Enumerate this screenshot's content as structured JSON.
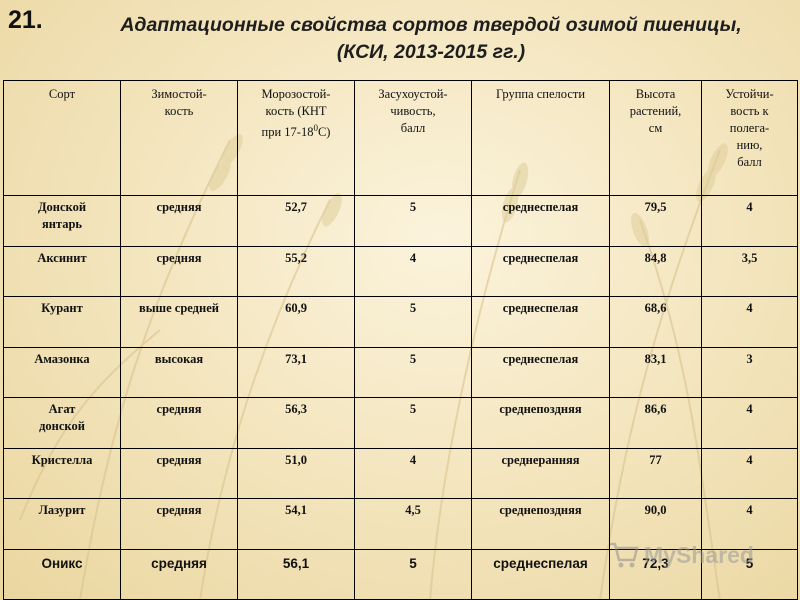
{
  "slide": {
    "number": "21.",
    "title_line1": "Адаптационные свойства сортов твердой озимой пшеницы,",
    "title_line2": "(КСИ, 2013-2015 гг.)"
  },
  "table": {
    "headers": [
      "Сорт",
      "Зимостой-\nкость",
      "Засухоустой-\nчивость,\nбалл",
      "Группа спелости",
      "Высота\nрастений,\nсм",
      "Устойчи-\nвость к\nполега-\nнию,\nбалл"
    ],
    "frost_header": {
      "main": "Морозостой-\nкость (КНТ\nпри 17-18",
      "sup": "0",
      "end": "С)"
    },
    "rows": [
      {
        "variety": "Донской\nянтарь",
        "winter": "средняя",
        "frost": "52,7",
        "drought": "5",
        "maturity": "среднеспелая",
        "height": "79,5",
        "lodging": "4"
      },
      {
        "variety": "Аксинит",
        "winter": "средняя",
        "frost": "55,2",
        "drought": "4",
        "maturity": "среднеспелая",
        "height": "84,8",
        "lodging": "3,5"
      },
      {
        "variety": "Курант",
        "winter": "выше средней",
        "frost": "60,9",
        "drought": "5",
        "maturity": "среднеспелая",
        "height": "68,6",
        "lodging": "4"
      },
      {
        "variety": "Амазонка",
        "winter": "высокая",
        "frost": "73,1",
        "drought": "5",
        "maturity": "среднеспелая",
        "height": "83,1",
        "lodging": "3"
      },
      {
        "variety": "Агат\nдонской",
        "winter": "средняя",
        "frost": "56,3",
        "drought": "5",
        "maturity": "среднепоздняя",
        "height": "86,6",
        "lodging": "4"
      },
      {
        "variety": "Кристелла",
        "winter": "средняя",
        "frost": "51,0",
        "drought": "4",
        "maturity": "среднеранняя",
        "height": "77",
        "lodging": "4"
      },
      {
        "variety": "Лазурит",
        "winter": "средняя",
        "frost": "54,1",
        "drought": "4,5",
        "maturity": "среднепоздняя",
        "height": "90,0",
        "lodging": "4"
      },
      {
        "variety": "Оникс",
        "winter": "средняя",
        "frost": "56,1",
        "drought": "5",
        "maturity": "среднеспелая",
        "height": "72,3",
        "lodging": "5"
      }
    ]
  },
  "watermark": {
    "text": "MyShared",
    "icon": "cart-icon"
  }
}
